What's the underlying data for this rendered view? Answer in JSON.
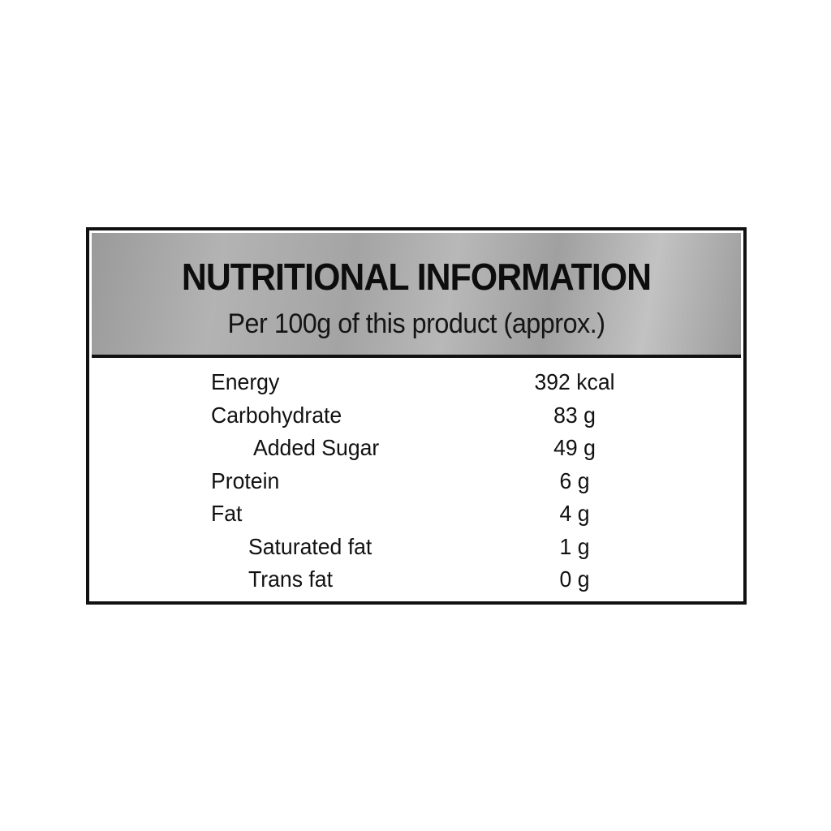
{
  "header": {
    "title": "NUTRITIONAL INFORMATION",
    "subtitle": "Per 100g of this product (approx.)"
  },
  "rows": [
    {
      "name": "Energy",
      "value": "392 kcal"
    },
    {
      "name": "Carbohydrate",
      "value": "83 g"
    },
    {
      "name": "Added Sugar",
      "value": "49 g"
    },
    {
      "name": "Protein",
      "value": "6 g"
    },
    {
      "name": "Fat",
      "value": "4 g"
    },
    {
      "name": "Saturated fat",
      "value": "1 g"
    },
    {
      "name": "Trans fat",
      "value": "0 g"
    }
  ]
}
